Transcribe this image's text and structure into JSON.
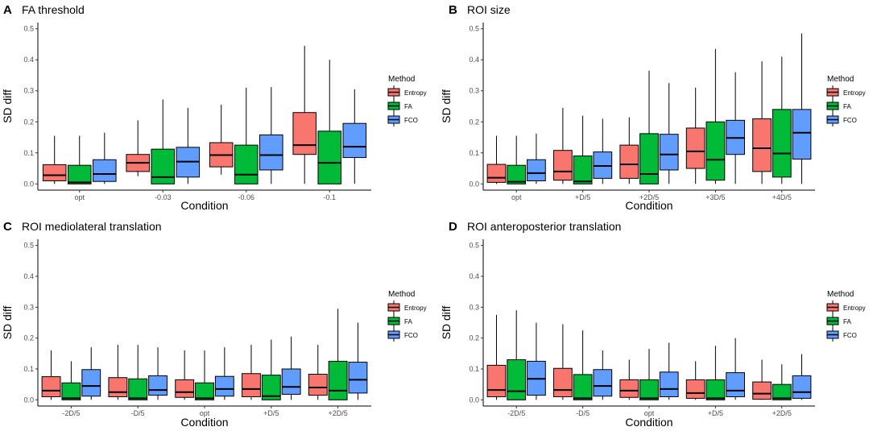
{
  "figure": {
    "colors": {
      "Entropy": "#F8766D",
      "FA": "#00BA38",
      "FCO": "#619CFF"
    }
  },
  "chart_data": [
    {
      "type": "boxplot",
      "panel": "A",
      "title": "FA threshold",
      "xlabel": "Condition",
      "ylabel": "SD diff",
      "ylim": [
        -0.02,
        0.52
      ],
      "yticks": [
        0.0,
        0.1,
        0.2,
        0.3,
        0.4,
        0.5
      ],
      "ytick_labels": [
        "0.0",
        "0.1",
        "0.2",
        "0.3",
        "0.4",
        "0.5"
      ],
      "categories": [
        "opt",
        "-0.03",
        "-0.06",
        "-0.1"
      ],
      "legend": {
        "title": "Method",
        "labels": [
          "Entropy",
          "FA",
          "FCO"
        ]
      },
      "series": [
        {
          "name": "Entropy",
          "boxes": [
            {
              "min": 0.0,
              "q1": 0.01,
              "median": 0.028,
              "q3": 0.062,
              "max": 0.155
            },
            {
              "min": 0.025,
              "q1": 0.04,
              "median": 0.068,
              "q3": 0.095,
              "max": 0.205
            },
            {
              "min": 0.03,
              "q1": 0.055,
              "median": 0.093,
              "q3": 0.133,
              "max": 0.255
            },
            {
              "min": 0.0,
              "q1": 0.095,
              "median": 0.125,
              "q3": 0.23,
              "max": 0.445
            }
          ]
        },
        {
          "name": "FA",
          "boxes": [
            {
              "min": 0.0,
              "q1": 0.0,
              "median": 0.005,
              "q3": 0.06,
              "max": 0.155
            },
            {
              "min": 0.0,
              "q1": 0.0,
              "median": 0.022,
              "q3": 0.112,
              "max": 0.272
            },
            {
              "min": 0.0,
              "q1": 0.0,
              "median": 0.03,
              "q3": 0.125,
              "max": 0.31
            },
            {
              "min": 0.0,
              "q1": 0.0,
              "median": 0.068,
              "q3": 0.17,
              "max": 0.4
            }
          ]
        },
        {
          "name": "FCO",
          "boxes": [
            {
              "min": 0.0,
              "q1": 0.008,
              "median": 0.032,
              "q3": 0.078,
              "max": 0.165
            },
            {
              "min": 0.0,
              "q1": 0.022,
              "median": 0.072,
              "q3": 0.118,
              "max": 0.245
            },
            {
              "min": 0.0,
              "q1": 0.045,
              "median": 0.093,
              "q3": 0.158,
              "max": 0.312
            },
            {
              "min": 0.0,
              "q1": 0.085,
              "median": 0.12,
              "q3": 0.195,
              "max": 0.305
            }
          ]
        }
      ]
    },
    {
      "type": "boxplot",
      "panel": "B",
      "title": "ROI size",
      "xlabel": "Condition",
      "ylabel": "SD diff",
      "ylim": [
        -0.02,
        0.52
      ],
      "yticks": [
        0.0,
        0.1,
        0.2,
        0.3,
        0.4,
        0.5
      ],
      "ytick_labels": [
        "0.0",
        "0.1",
        "0.2",
        "0.3",
        "0.4",
        "0.5"
      ],
      "categories": [
        "opt",
        "+D/5",
        "+2D/5",
        "+3D/5",
        "+4D/5"
      ],
      "legend": {
        "title": "Method",
        "labels": [
          "Entropy",
          "FA",
          "FCO"
        ]
      },
      "series": [
        {
          "name": "Entropy",
          "boxes": [
            {
              "min": 0.0,
              "q1": 0.005,
              "median": 0.02,
              "q3": 0.063,
              "max": 0.155
            },
            {
              "min": 0.0,
              "q1": 0.012,
              "median": 0.04,
              "q3": 0.108,
              "max": 0.245
            },
            {
              "min": 0.0,
              "q1": 0.018,
              "median": 0.063,
              "q3": 0.125,
              "max": 0.215
            },
            {
              "min": 0.0,
              "q1": 0.05,
              "median": 0.105,
              "q3": 0.18,
              "max": 0.31
            },
            {
              "min": 0.0,
              "q1": 0.04,
              "median": 0.115,
              "q3": 0.21,
              "max": 0.395
            }
          ]
        },
        {
          "name": "FA",
          "boxes": [
            {
              "min": 0.0,
              "q1": 0.0,
              "median": 0.007,
              "q3": 0.06,
              "max": 0.155
            },
            {
              "min": 0.0,
              "q1": 0.0,
              "median": 0.008,
              "q3": 0.09,
              "max": 0.22
            },
            {
              "min": 0.0,
              "q1": 0.0,
              "median": 0.032,
              "q3": 0.162,
              "max": 0.365
            },
            {
              "min": 0.0,
              "q1": 0.012,
              "median": 0.078,
              "q3": 0.2,
              "max": 0.435
            },
            {
              "min": 0.0,
              "q1": 0.022,
              "median": 0.098,
              "q3": 0.24,
              "max": 0.41
            }
          ]
        },
        {
          "name": "FCO",
          "boxes": [
            {
              "min": 0.0,
              "q1": 0.01,
              "median": 0.035,
              "q3": 0.078,
              "max": 0.162
            },
            {
              "min": 0.0,
              "q1": 0.018,
              "median": 0.058,
              "q3": 0.103,
              "max": 0.21
            },
            {
              "min": 0.0,
              "q1": 0.045,
              "median": 0.095,
              "q3": 0.16,
              "max": 0.325
            },
            {
              "min": 0.0,
              "q1": 0.095,
              "median": 0.148,
              "q3": 0.205,
              "max": 0.36
            },
            {
              "min": 0.0,
              "q1": 0.08,
              "median": 0.165,
              "q3": 0.24,
              "max": 0.485
            }
          ]
        }
      ]
    },
    {
      "type": "boxplot",
      "panel": "C",
      "title": "ROI mediolateral translation",
      "xlabel": "Condition",
      "ylabel": "SD diff",
      "ylim": [
        -0.02,
        0.52
      ],
      "yticks": [
        0.0,
        0.1,
        0.2,
        0.3,
        0.4,
        0.5
      ],
      "ytick_labels": [
        "0.0",
        "0.1",
        "0.2",
        "0.3",
        "0.4",
        "0.5"
      ],
      "categories": [
        "-2D/5",
        "-D/5",
        "opt",
        "+D/5",
        "+2D/5"
      ],
      "legend": {
        "title": "Method",
        "labels": [
          "Entropy",
          "FA",
          "FCO"
        ]
      },
      "series": [
        {
          "name": "Entropy",
          "boxes": [
            {
              "min": 0.0,
              "q1": 0.01,
              "median": 0.03,
              "q3": 0.075,
              "max": 0.16
            },
            {
              "min": 0.0,
              "q1": 0.01,
              "median": 0.025,
              "q3": 0.072,
              "max": 0.178
            },
            {
              "min": 0.0,
              "q1": 0.008,
              "median": 0.025,
              "q3": 0.065,
              "max": 0.16
            },
            {
              "min": 0.0,
              "q1": 0.01,
              "median": 0.035,
              "q3": 0.085,
              "max": 0.178
            },
            {
              "min": 0.0,
              "q1": 0.015,
              "median": 0.04,
              "q3": 0.083,
              "max": 0.178
            }
          ]
        },
        {
          "name": "FA",
          "boxes": [
            {
              "min": 0.0,
              "q1": 0.0,
              "median": 0.005,
              "q3": 0.055,
              "max": 0.125
            },
            {
              "min": 0.0,
              "q1": 0.0,
              "median": 0.005,
              "q3": 0.068,
              "max": 0.178
            },
            {
              "min": 0.0,
              "q1": 0.0,
              "median": 0.005,
              "q3": 0.055,
              "max": 0.16
            },
            {
              "min": 0.0,
              "q1": 0.0,
              "median": 0.012,
              "q3": 0.08,
              "max": 0.195
            },
            {
              "min": 0.0,
              "q1": 0.0,
              "median": 0.03,
              "q3": 0.125,
              "max": 0.295
            }
          ]
        },
        {
          "name": "FCO",
          "boxes": [
            {
              "min": 0.0,
              "q1": 0.012,
              "median": 0.045,
              "q3": 0.098,
              "max": 0.17
            },
            {
              "min": 0.0,
              "q1": 0.015,
              "median": 0.032,
              "q3": 0.078,
              "max": 0.17
            },
            {
              "min": 0.0,
              "q1": 0.012,
              "median": 0.035,
              "q3": 0.076,
              "max": 0.17
            },
            {
              "min": 0.0,
              "q1": 0.018,
              "median": 0.042,
              "q3": 0.1,
              "max": 0.205
            },
            {
              "min": 0.0,
              "q1": 0.022,
              "median": 0.065,
              "q3": 0.122,
              "max": 0.25
            }
          ]
        }
      ]
    },
    {
      "type": "boxplot",
      "panel": "D",
      "title": "ROI anteroposterior translation",
      "xlabel": "Condition",
      "ylabel": "SD diff",
      "ylim": [
        -0.02,
        0.52
      ],
      "yticks": [
        0.0,
        0.1,
        0.2,
        0.3,
        0.4,
        0.5
      ],
      "ytick_labels": [
        "0.0",
        "0.1",
        "0.2",
        "0.3",
        "0.4",
        "0.5"
      ],
      "categories": [
        "-2D/5",
        "-D/5",
        "opt",
        "+D/5",
        "+2D/5"
      ],
      "legend": {
        "title": "Method",
        "labels": [
          "Entropy",
          "FA",
          "FCO"
        ]
      },
      "series": [
        {
          "name": "Entropy",
          "boxes": [
            {
              "min": 0.0,
              "q1": 0.01,
              "median": 0.032,
              "q3": 0.112,
              "max": 0.275
            },
            {
              "min": 0.0,
              "q1": 0.01,
              "median": 0.032,
              "q3": 0.102,
              "max": 0.245
            },
            {
              "min": 0.0,
              "q1": 0.008,
              "median": 0.03,
              "q3": 0.065,
              "max": 0.13
            },
            {
              "min": 0.0,
              "q1": 0.005,
              "median": 0.022,
              "q3": 0.065,
              "max": 0.125
            },
            {
              "min": 0.0,
              "q1": 0.002,
              "median": 0.02,
              "q3": 0.058,
              "max": 0.13
            }
          ]
        },
        {
          "name": "FA",
          "boxes": [
            {
              "min": 0.0,
              "q1": 0.0,
              "median": 0.028,
              "q3": 0.13,
              "max": 0.29
            },
            {
              "min": 0.0,
              "q1": 0.0,
              "median": 0.005,
              "q3": 0.082,
              "max": 0.225
            },
            {
              "min": 0.0,
              "q1": 0.0,
              "median": 0.005,
              "q3": 0.065,
              "max": 0.165
            },
            {
              "min": 0.0,
              "q1": 0.0,
              "median": 0.005,
              "q3": 0.065,
              "max": 0.175
            },
            {
              "min": 0.0,
              "q1": 0.0,
              "median": 0.005,
              "q3": 0.05,
              "max": 0.115
            }
          ]
        },
        {
          "name": "FCO",
          "boxes": [
            {
              "min": 0.0,
              "q1": 0.015,
              "median": 0.068,
              "q3": 0.125,
              "max": 0.25
            },
            {
              "min": 0.0,
              "q1": 0.012,
              "median": 0.045,
              "q3": 0.098,
              "max": 0.16
            },
            {
              "min": 0.0,
              "q1": 0.01,
              "median": 0.035,
              "q3": 0.09,
              "max": 0.185
            },
            {
              "min": 0.0,
              "q1": 0.01,
              "median": 0.03,
              "q3": 0.088,
              "max": 0.2
            },
            {
              "min": 0.0,
              "q1": 0.005,
              "median": 0.025,
              "q3": 0.078,
              "max": 0.148
            }
          ]
        }
      ]
    }
  ]
}
